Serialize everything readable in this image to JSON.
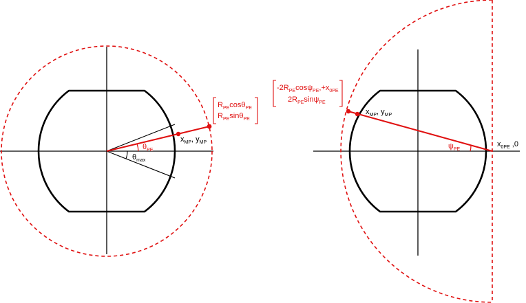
{
  "left_panel": {
    "angle_theta": {
      "symbol": "θ",
      "sub": "PE"
    },
    "angle_theta_max": {
      "symbol": "θ",
      "sub": "max"
    },
    "point_mp": {
      "x_sym": "x",
      "x_sub": "MP",
      "sep": ", ",
      "y_sym": "y",
      "y_sub": "MP"
    },
    "matrix": {
      "row1": {
        "a": "R",
        "a_sub": "PE",
        "b": "cosθ",
        "b_sub": "PE"
      },
      "row2": {
        "a": "R",
        "a_sub": "PE",
        "b": "sinθ",
        "b_sub": "PE"
      }
    }
  },
  "right_panel": {
    "angle_psi": {
      "symbol": "ψ",
      "sub": "PE"
    },
    "point_mp": {
      "x_sym": "x",
      "x_sub": "MP",
      "sep": ", ",
      "y_sym": "y",
      "y_sub": "MP"
    },
    "point_0pe": {
      "x_sym": "x",
      "x_sub": "0PE",
      "suffix": " ,0"
    },
    "matrix": {
      "row1": {
        "p1": "-2R",
        "p1_sub": "PE",
        "p2": "cosψ",
        "p2_sub": "PE",
        "p3": ",+x",
        "p3_sub": "0PE"
      },
      "row2": {
        "p1": "2R",
        "p1_sub": "PE",
        "p2": "sinψ",
        "p2_sub": "PE"
      }
    }
  },
  "colors": {
    "construction": "#e01010",
    "shape": "#000000"
  }
}
